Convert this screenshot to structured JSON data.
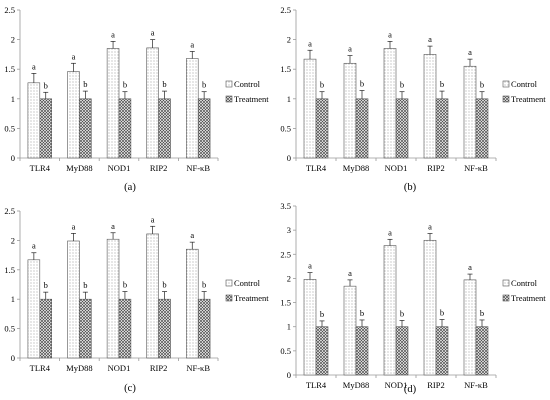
{
  "chart_data": [
    {
      "type": "bar",
      "panel_label": "(a)",
      "categories": [
        "TLR4",
        "MyD88",
        "NOD1",
        "RIP2",
        "NF-κB"
      ],
      "ylim": [
        0,
        2.5
      ],
      "yticks": [
        "0",
        "0.5",
        "1",
        "1.5",
        "2",
        "2.5"
      ],
      "series": [
        {
          "name": "Control",
          "values": [
            1.27,
            1.46,
            1.85,
            1.86,
            1.68
          ],
          "errors": [
            0.16,
            0.14,
            0.12,
            0.14,
            0.12
          ],
          "labels": [
            "a",
            "a",
            "a",
            "a",
            "a"
          ]
        },
        {
          "name": "Treatment",
          "values": [
            1.0,
            1.0,
            1.0,
            1.0,
            1.0
          ],
          "errors": [
            0.11,
            0.13,
            0.12,
            0.13,
            0.12
          ],
          "labels": [
            "b",
            "b",
            "b",
            "b",
            "b"
          ]
        }
      ],
      "legend_position": "right"
    },
    {
      "type": "bar",
      "panel_label": "(b)",
      "categories": [
        "TLR4",
        "MyD88",
        "NOD1",
        "RIP2",
        "NF-κB"
      ],
      "ylim": [
        0,
        2.5
      ],
      "yticks": [
        "0",
        "0.5",
        "1",
        "1.5",
        "2",
        "2.5"
      ],
      "series": [
        {
          "name": "Control",
          "values": [
            1.67,
            1.6,
            1.85,
            1.75,
            1.55
          ],
          "errors": [
            0.15,
            0.13,
            0.12,
            0.14,
            0.12
          ],
          "labels": [
            "a",
            "a",
            "a",
            "a",
            "a"
          ]
        },
        {
          "name": "Treatment",
          "values": [
            1.0,
            1.0,
            1.0,
            1.0,
            1.0
          ],
          "errors": [
            0.12,
            0.14,
            0.12,
            0.13,
            0.12
          ],
          "labels": [
            "b",
            "b",
            "b",
            "b",
            "b"
          ]
        }
      ],
      "legend_position": "right"
    },
    {
      "type": "bar",
      "panel_label": "(c)",
      "categories": [
        "TLR4",
        "MyD88",
        "NOD1",
        "RIP2",
        "NF-κB"
      ],
      "ylim": [
        0,
        2.5
      ],
      "yticks": [
        "0",
        "0.5",
        "1",
        "1.5",
        "2",
        "2.5"
      ],
      "series": [
        {
          "name": "Control",
          "values": [
            1.67,
            1.99,
            2.02,
            2.11,
            1.85
          ],
          "errors": [
            0.12,
            0.13,
            0.11,
            0.13,
            0.12
          ],
          "labels": [
            "a",
            "a",
            "a",
            "a",
            "a"
          ]
        },
        {
          "name": "Treatment",
          "values": [
            1.0,
            1.0,
            1.0,
            1.0,
            1.0
          ],
          "errors": [
            0.12,
            0.12,
            0.13,
            0.13,
            0.13
          ],
          "labels": [
            "b",
            "b",
            "b",
            "b",
            "b"
          ]
        }
      ],
      "legend_position": "right"
    },
    {
      "type": "bar",
      "panel_label": "(d)",
      "categories": [
        "TLR4",
        "MyD88",
        "NOD1",
        "RIP2",
        "NF-κB"
      ],
      "ylim": [
        0,
        3.5
      ],
      "yticks": [
        "0",
        "0.5",
        "1",
        "1.5",
        "2",
        "2.5",
        "3",
        "3.5"
      ],
      "series": [
        {
          "name": "Control",
          "values": [
            1.98,
            1.84,
            2.68,
            2.79,
            1.97
          ],
          "errors": [
            0.14,
            0.13,
            0.13,
            0.14,
            0.12
          ],
          "labels": [
            "a",
            "a",
            "a",
            "a",
            "a"
          ]
        },
        {
          "name": "Treatment",
          "values": [
            1.0,
            1.0,
            1.0,
            1.0,
            1.0
          ],
          "errors": [
            0.12,
            0.14,
            0.13,
            0.15,
            0.14
          ],
          "labels": [
            "b",
            "b",
            "b",
            "b",
            "b"
          ]
        }
      ],
      "legend_position": "right"
    }
  ]
}
